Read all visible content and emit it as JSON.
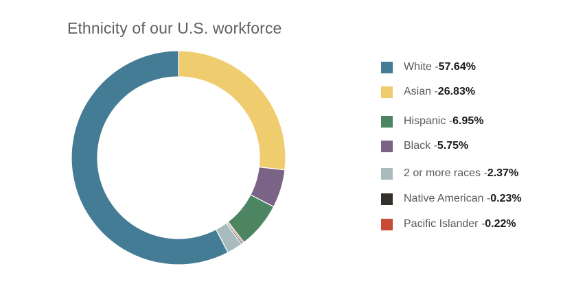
{
  "chart_data": {
    "type": "pie",
    "title": "Ethnicity of our U.S. workforce",
    "categories": [
      "White",
      "Asian",
      "Hispanic",
      "Black",
      "2 or more races",
      "Native American",
      "Pacific Islander"
    ],
    "values": [
      57.64,
      26.83,
      6.95,
      5.75,
      2.37,
      0.23,
      0.22
    ],
    "unit": "%",
    "colors": [
      "#447c96",
      "#efcd6e",
      "#4d8461",
      "#7b6388",
      "#a9bcbd",
      "#33302c",
      "#c94a36"
    ],
    "legend": [
      {
        "label": "White - ",
        "value": "57.64%"
      },
      {
        "label": "Asian - ",
        "value": "26.83%"
      },
      {
        "label": "Hispanic - ",
        "value": "6.95%"
      },
      {
        "label": "Black - ",
        "value": "5.75%"
      },
      {
        "label": "2 or more races - ",
        "value": "2.37%"
      },
      {
        "label": "Native American - ",
        "value": "0.23%"
      },
      {
        "label": "Pacific Islander - ",
        "value": "0.22%"
      }
    ],
    "slice_order_clockwise_from_top": [
      "Asian",
      "Black",
      "Hispanic",
      "Pacific Islander",
      "Native American",
      "2 or more races",
      "White"
    ],
    "legend_position": "right",
    "donut": true
  }
}
